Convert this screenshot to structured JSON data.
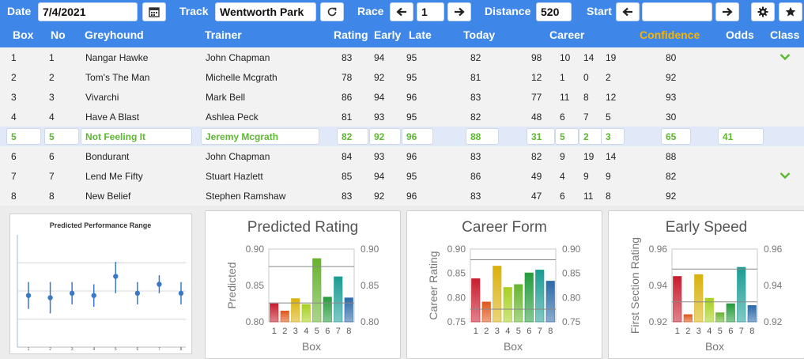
{
  "toolbar": {
    "date_label": "Date",
    "date_value": "7/4/2021",
    "track_label": "Track",
    "track_value": "Wentworth Park",
    "race_label": "Race",
    "race_value": "1",
    "distance_label": "Distance",
    "distance_value": "520",
    "start_label": "Start",
    "start_value": ""
  },
  "columns": {
    "box": "Box",
    "no": "No",
    "greyhound": "Greyhound",
    "trainer": "Trainer",
    "rating": "Rating",
    "early": "Early",
    "late": "Late",
    "today": "Today",
    "career": "Career",
    "confidence": "Confidence",
    "odds": "Odds",
    "class": "Class"
  },
  "accent_color": "#3e86e8",
  "confidence_header_color": "#f7b500",
  "rows": [
    {
      "box": "1",
      "no": "1",
      "greyhound": "Nangar Hawke",
      "trainer": "John Chapman",
      "rating": "83",
      "early": "94",
      "late": "95",
      "today": "82",
      "career": "98",
      "c1": "10",
      "c2": "14",
      "c3": "19",
      "confidence": "80",
      "odds": "",
      "class_check": true,
      "selected": false
    },
    {
      "box": "2",
      "no": "2",
      "greyhound": "Tom's The Man",
      "trainer": "Michelle Mcgrath",
      "rating": "78",
      "early": "92",
      "late": "95",
      "today": "81",
      "career": "12",
      "c1": "1",
      "c2": "0",
      "c3": "2",
      "confidence": "92",
      "odds": "",
      "class_check": false,
      "selected": false
    },
    {
      "box": "3",
      "no": "3",
      "greyhound": "Vivarchi",
      "trainer": "Mark Bell",
      "rating": "86",
      "early": "94",
      "late": "96",
      "today": "83",
      "career": "77",
      "c1": "11",
      "c2": "8",
      "c3": "12",
      "confidence": "93",
      "odds": "",
      "class_check": false,
      "selected": false
    },
    {
      "box": "4",
      "no": "4",
      "greyhound": "Have A Blast",
      "trainer": "Ashlea Peck",
      "rating": "81",
      "early": "93",
      "late": "95",
      "today": "82",
      "career": "48",
      "c1": "6",
      "c2": "7",
      "c3": "5",
      "confidence": "30",
      "odds": "",
      "class_check": false,
      "selected": false
    },
    {
      "box": "5",
      "no": "5",
      "greyhound": "Not Feeling It",
      "trainer": "Jeremy Mcgrath",
      "rating": "82",
      "early": "92",
      "late": "96",
      "today": "88",
      "career": "31",
      "c1": "5",
      "c2": "2",
      "c3": "3",
      "confidence": "65",
      "odds": "41",
      "class_check": false,
      "selected": true
    },
    {
      "box": "6",
      "no": "6",
      "greyhound": "Bondurant",
      "trainer": "John Chapman",
      "rating": "84",
      "early": "93",
      "late": "96",
      "today": "83",
      "career": "82",
      "c1": "9",
      "c2": "19",
      "c3": "14",
      "confidence": "88",
      "odds": "",
      "class_check": false,
      "selected": false
    },
    {
      "box": "7",
      "no": "7",
      "greyhound": "Lend Me Fifty",
      "trainer": "Stuart Hazlett",
      "rating": "85",
      "early": "94",
      "late": "95",
      "today": "86",
      "career": "49",
      "c1": "4",
      "c2": "9",
      "c3": "9",
      "confidence": "82",
      "odds": "",
      "class_check": true,
      "selected": false
    },
    {
      "box": "8",
      "no": "8",
      "greyhound": "New Belief",
      "trainer": "Stephen Ramshaw",
      "rating": "83",
      "early": "92",
      "late": "96",
      "today": "83",
      "career": "47",
      "c1": "6",
      "c2": "11",
      "c3": "8",
      "confidence": "92",
      "odds": "",
      "class_check": false,
      "selected": false
    }
  ],
  "chart_data": [
    {
      "type": "scatter",
      "title": "Predicted Performance Range",
      "categories": [
        "1",
        "2",
        "3",
        "4",
        "5",
        "6",
        "7",
        "8"
      ],
      "values": [
        0.46,
        0.44,
        0.48,
        0.46,
        0.63,
        0.48,
        0.56,
        0.48
      ],
      "low": [
        0.34,
        0.3,
        0.38,
        0.36,
        0.48,
        0.38,
        0.48,
        0.38
      ],
      "high": [
        0.58,
        0.58,
        0.58,
        0.56,
        0.76,
        0.58,
        0.64,
        0.58
      ],
      "color": "#3a79c8"
    },
    {
      "type": "bar",
      "title": "Predicted Rating",
      "xlabel": "Box",
      "ylabel": "Predicted",
      "categories": [
        "1",
        "2",
        "3",
        "4",
        "5",
        "6",
        "7",
        "8"
      ],
      "values": [
        0.825,
        0.815,
        0.832,
        0.824,
        0.887,
        0.834,
        0.862,
        0.833
      ],
      "ylim": [
        0.8,
        0.9
      ],
      "yticks": [
        "0.80",
        "0.85",
        "0.90"
      ],
      "ref_lines": [
        0.876,
        0.826
      ]
    },
    {
      "type": "bar",
      "title": "Career Form",
      "xlabel": "Box",
      "ylabel": "Career Rating",
      "categories": [
        "1",
        "2",
        "3",
        "4",
        "5",
        "6",
        "7",
        "8"
      ],
      "values": [
        0.839,
        0.791,
        0.865,
        0.821,
        0.827,
        0.851,
        0.857,
        0.834
      ],
      "ylim": [
        0.75,
        0.9
      ],
      "yticks": [
        "0.75",
        "0.80",
        "0.85",
        "0.90"
      ],
      "ref_lines": [
        0.878,
        0.776
      ]
    },
    {
      "type": "bar",
      "title": "Early Speed",
      "xlabel": "Box",
      "ylabel": "First Section Rating",
      "categories": [
        "1",
        "2",
        "3",
        "4",
        "5",
        "6",
        "7",
        "8"
      ],
      "values": [
        0.945,
        0.924,
        0.946,
        0.933,
        0.925,
        0.93,
        0.95,
        0.929
      ],
      "ylim": [
        0.92,
        0.96
      ],
      "yticks": [
        "0.92",
        "0.94",
        "0.96"
      ],
      "ref_lines": [
        0.949,
        0.931
      ]
    }
  ],
  "bar_colors": [
    "#c81d2e",
    "#e0571b",
    "#d9b10d",
    "#a6d01f",
    "#66b32e",
    "#249b3c",
    "#1a9c94",
    "#2a6aa8"
  ]
}
